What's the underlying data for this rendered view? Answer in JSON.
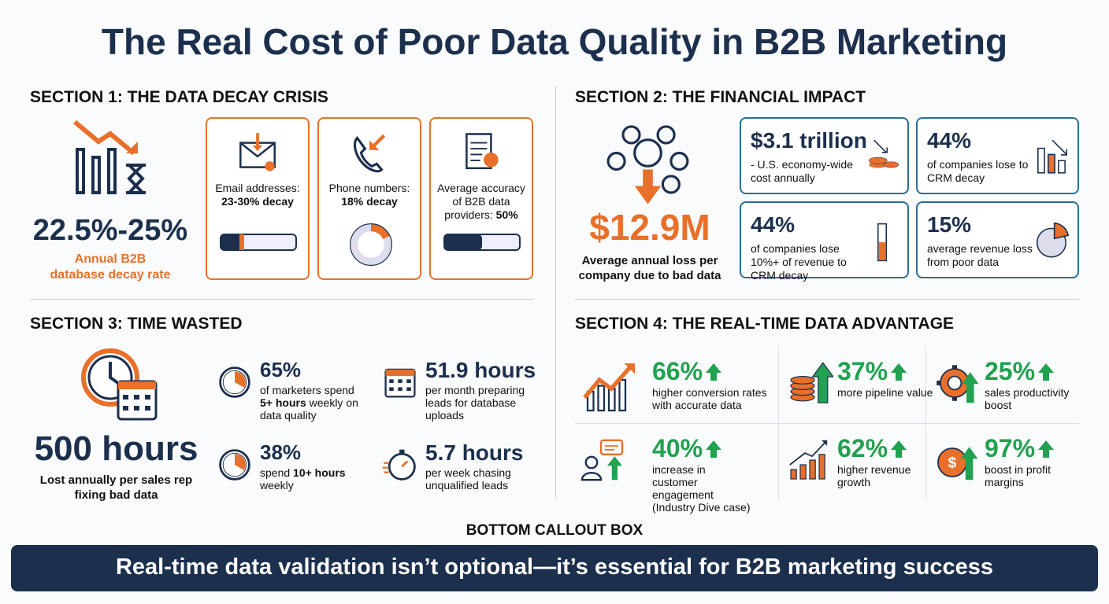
{
  "title": "The Real Cost of Poor Data Quality in B2B Marketing",
  "sections": [
    {
      "heading": "SECTION 1: THE DATA DECAY CRISIS",
      "hero": {
        "value": "22.5%-25%",
        "label": "Annual B2B database decay rate"
      },
      "cards": [
        {
          "label": "Email addresses:",
          "value": "23-30% decay"
        },
        {
          "label": "Phone numbers:",
          "value": "18% decay"
        },
        {
          "label": "Average accuracy of B2B data providers:",
          "value": "50%"
        }
      ]
    },
    {
      "heading": "SECTION 2: THE FINANCIAL IMPACT",
      "hero": {
        "value": "$12.9M",
        "label": "Average annual loss per company due to bad data"
      },
      "cards": [
        {
          "value": "$3.1 trillion",
          "label": "- U.S. economy-wide cost annually"
        },
        {
          "value": "44%",
          "label": "of companies lose to CRM decay"
        },
        {
          "value": "44%",
          "label": "of companies lose 10%+ of revenue to CRM decay"
        },
        {
          "value": "15%",
          "label": "average revenue loss from poor data"
        }
      ]
    },
    {
      "heading": "SECTION 3: TIME WASTED",
      "hero": {
        "value": "500 hours",
        "label": "Lost annually per sales rep fixing bad data"
      },
      "stats": [
        {
          "value": "65%",
          "pre": "of marketers spend",
          "bold": "5+ hours",
          "post": "weekly on data quality"
        },
        {
          "value": "51.9 hours",
          "pre": "per month preparing leads for database uploads"
        },
        {
          "value": "38%",
          "pre": "spend",
          "bold": "10+ hours",
          "post": "weekly"
        },
        {
          "value": "5.7 hours",
          "pre": "per week chasing unqualified leads"
        }
      ]
    },
    {
      "heading": "SECTION 4: THE REAL-TIME DATA ADVANTAGE",
      "stats": [
        {
          "value": "66%",
          "label": "higher conversion rates with accurate data"
        },
        {
          "value": "37%",
          "label": "more pipeline value"
        },
        {
          "value": "25%",
          "label": "sales productivity boost"
        },
        {
          "value": "40%",
          "label": "increase in customer engagement (Industry Dive case)"
        },
        {
          "value": "62%",
          "label": "higher revenue growth"
        },
        {
          "value": "97%",
          "label": "boost in profit margins"
        }
      ]
    }
  ],
  "callout": {
    "label": "BOTTOM CALLOUT BOX",
    "text": "Real-time data validation isn’t optional—it’s essential for B2B marketing success"
  }
}
